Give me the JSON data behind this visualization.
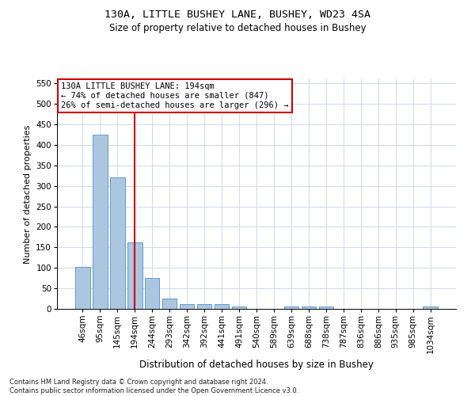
{
  "title1": "130A, LITTLE BUSHEY LANE, BUSHEY, WD23 4SA",
  "title2": "Size of property relative to detached houses in Bushey",
  "xlabel": "Distribution of detached houses by size in Bushey",
  "ylabel": "Number of detached properties",
  "categories": [
    "46sqm",
    "95sqm",
    "145sqm",
    "194sqm",
    "244sqm",
    "293sqm",
    "342sqm",
    "392sqm",
    "441sqm",
    "491sqm",
    "540sqm",
    "589sqm",
    "639sqm",
    "688sqm",
    "738sqm",
    "787sqm",
    "836sqm",
    "886sqm",
    "935sqm",
    "985sqm",
    "1034sqm"
  ],
  "values": [
    103,
    425,
    320,
    163,
    75,
    25,
    11,
    12,
    11,
    5,
    0,
    0,
    5,
    5,
    5,
    0,
    0,
    0,
    0,
    0,
    5
  ],
  "bar_color": "#adc6e0",
  "bar_edge_color": "#5b9bd5",
  "vline_x_idx": 3,
  "vline_color": "#cc0000",
  "annotation_text": "130A LITTLE BUSHEY LANE: 194sqm\n← 74% of detached houses are smaller (847)\n26% of semi-detached houses are larger (296) →",
  "annotation_box_color": "#ffffff",
  "annotation_box_edge": "#cc0000",
  "ylim": [
    0,
    560
  ],
  "yticks": [
    0,
    50,
    100,
    150,
    200,
    250,
    300,
    350,
    400,
    450,
    500,
    550
  ],
  "footnote": "Contains HM Land Registry data © Crown copyright and database right 2024.\nContains public sector information licensed under the Open Government Licence v3.0.",
  "bg_color": "#ffffff",
  "grid_color": "#c8d4e8",
  "title1_fontsize": 9.5,
  "title2_fontsize": 8.5,
  "xlabel_fontsize": 8.5,
  "ylabel_fontsize": 8,
  "tick_fontsize": 7.5,
  "annot_fontsize": 7.5,
  "footnote_fontsize": 6
}
